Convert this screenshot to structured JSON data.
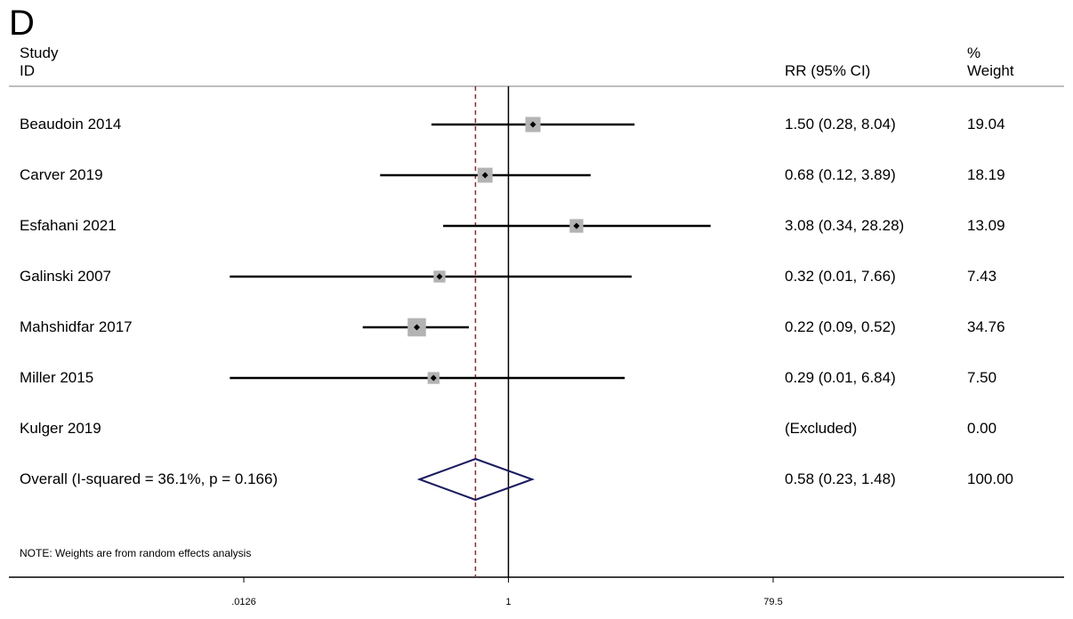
{
  "panel_label": "D",
  "headers": {
    "study_line1": "Study",
    "study_line2": "ID",
    "ci": "RR (95% CI)",
    "weight_line1": "%",
    "weight_line2": "Weight"
  },
  "note": "NOTE: Weights are from random effects analysis",
  "colors": {
    "line": "#000000",
    "box": "#b3b3b3",
    "diamond": "#1a1a5e",
    "null_line": "#8b2a2a",
    "rule": "#bfbfbf"
  },
  "chart_data": {
    "type": "forest",
    "measure": "RR",
    "x_scale": "log",
    "x_ticks": [
      {
        "value": 0.0126,
        "label": ".0126"
      },
      {
        "value": 1,
        "label": "1"
      },
      {
        "value": 79.5,
        "label": "79.5"
      }
    ],
    "xlim": [
      0.0126,
      79.5
    ],
    "null_value": 1,
    "studies": [
      {
        "id": "Beaudoin 2014",
        "rr": 1.5,
        "lo": 0.28,
        "hi": 8.04,
        "ci_text": "1.50 (0.28, 8.04)",
        "weight": 19.04,
        "weight_text": "19.04"
      },
      {
        "id": "Carver 2019",
        "rr": 0.68,
        "lo": 0.12,
        "hi": 3.89,
        "ci_text": "0.68 (0.12, 3.89)",
        "weight": 18.19,
        "weight_text": "18.19"
      },
      {
        "id": "Esfahani 2021",
        "rr": 3.08,
        "lo": 0.34,
        "hi": 28.28,
        "ci_text": "3.08 (0.34, 28.28)",
        "weight": 13.09,
        "weight_text": "13.09"
      },
      {
        "id": "Galinski 2007",
        "rr": 0.32,
        "lo": 0.01,
        "hi": 7.66,
        "ci_text": "0.32 (0.01, 7.66)",
        "weight": 7.43,
        "weight_text": "7.43"
      },
      {
        "id": "Mahshidfar 2017",
        "rr": 0.22,
        "lo": 0.09,
        "hi": 0.52,
        "ci_text": "0.22 (0.09, 0.52)",
        "weight": 34.76,
        "weight_text": "34.76"
      },
      {
        "id": "Miller 2015",
        "rr": 0.29,
        "lo": 0.01,
        "hi": 6.84,
        "ci_text": "0.29 (0.01, 6.84)",
        "weight": 7.5,
        "weight_text": "7.50"
      },
      {
        "id": "Kulger 2019",
        "rr": null,
        "lo": null,
        "hi": null,
        "ci_text": "(Excluded)",
        "weight": 0,
        "weight_text": "0.00"
      }
    ],
    "overall": {
      "label": "Overall  (I-squared = 36.1%, p = 0.166)",
      "rr": 0.58,
      "lo": 0.23,
      "hi": 1.48,
      "ci_text": "0.58 (0.23, 1.48)",
      "weight_text": "100.00"
    }
  }
}
